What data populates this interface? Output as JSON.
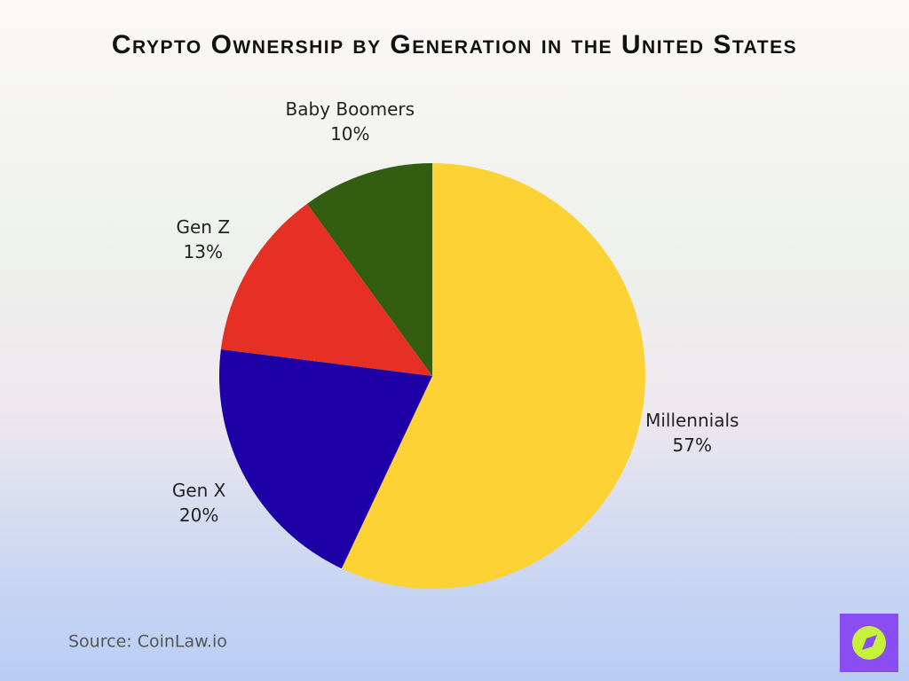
{
  "chart_data": {
    "type": "pie",
    "title": "Crypto Ownership by Generation in the United States",
    "categories": [
      "Millennials",
      "Gen X",
      "Gen Z",
      "Baby Boomers"
    ],
    "values": [
      57,
      20,
      13,
      10
    ],
    "value_labels": [
      "57%",
      "20%",
      "13%",
      "10%"
    ],
    "colors": [
      "#fdd235",
      "#1d00a6",
      "#e63025",
      "#335e12"
    ],
    "source": "Source: CoinLaw.io"
  }
}
